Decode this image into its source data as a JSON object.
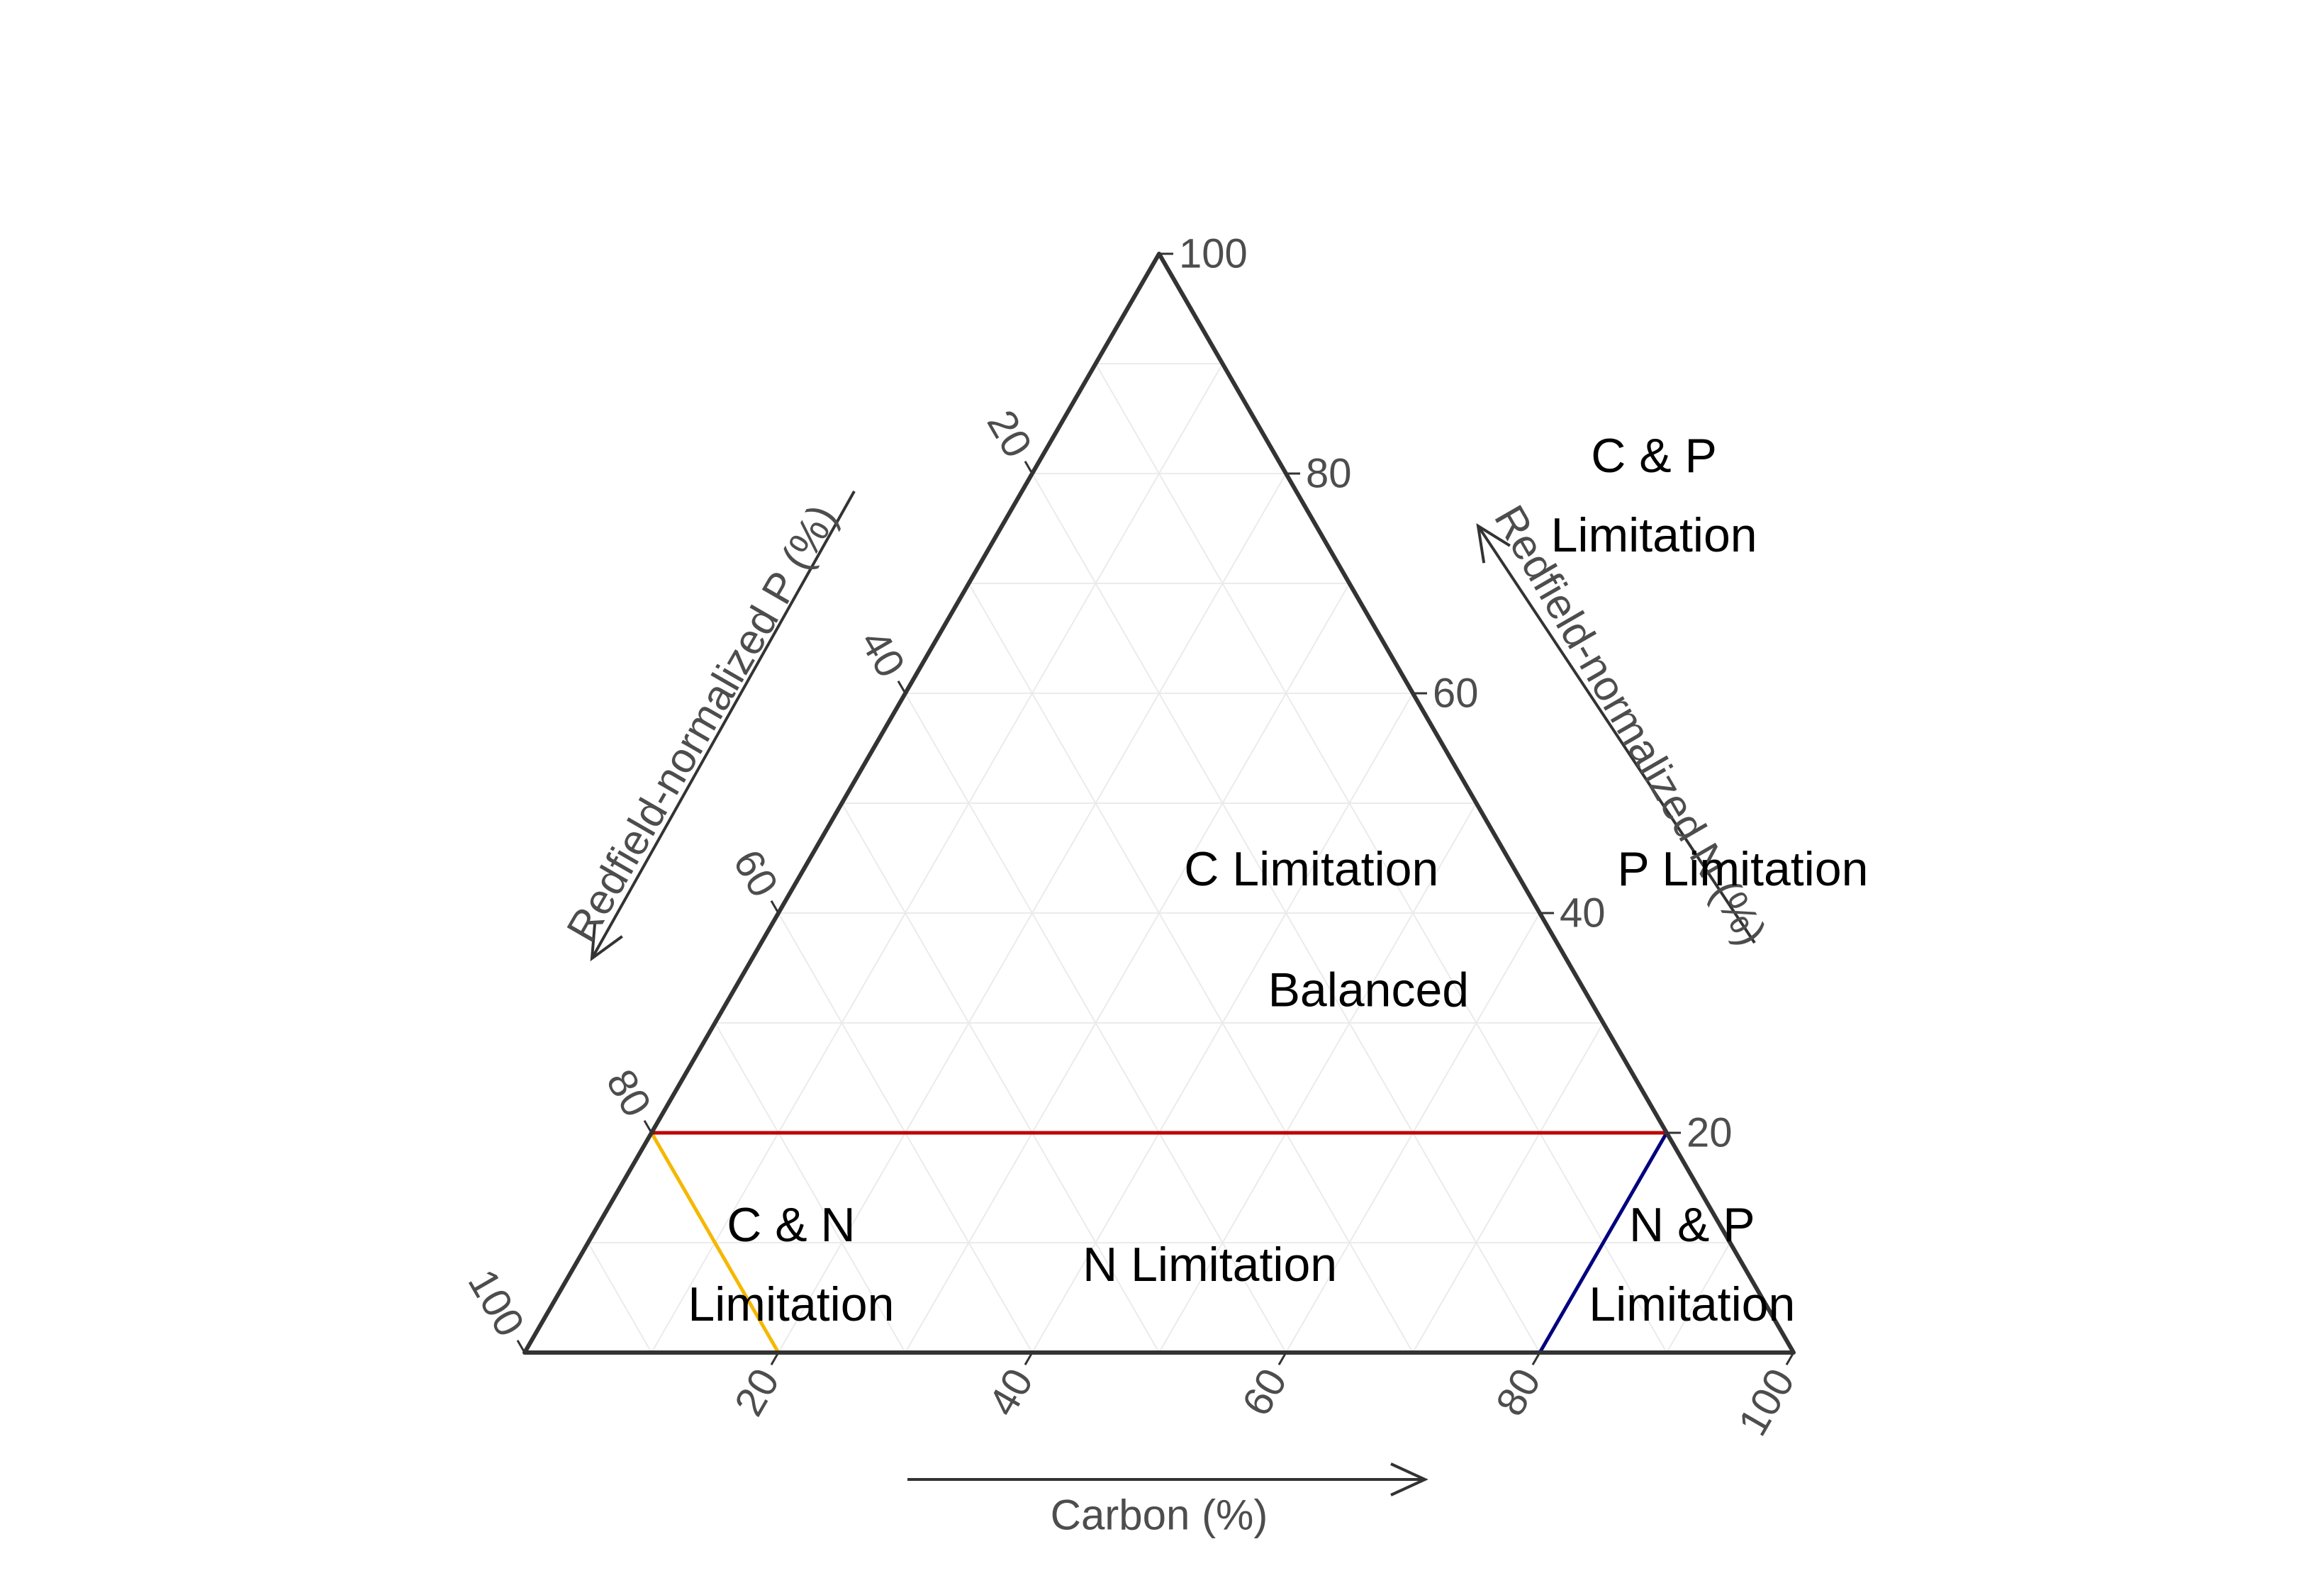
{
  "chart_data": {
    "type": "ternary",
    "axes": {
      "carbon": {
        "label": "Carbon (%)",
        "ticks": [
          "20",
          "40",
          "60",
          "80",
          "100"
        ]
      },
      "nitrogen": {
        "label": "Redfield-normalized N (%)",
        "ticks": [
          "20",
          "40",
          "60",
          "80",
          "100"
        ]
      },
      "phosphorus": {
        "label": "Redfield-normalized P (%)",
        "ticks": [
          "20",
          "40",
          "60",
          "80",
          "100"
        ]
      }
    },
    "grid": true,
    "threshold_lines": [
      {
        "name": "",
        "color": "#F5B700",
        "constant": "phosphorus",
        "value": 80
      },
      {
        "name": "",
        "color": "#00007F",
        "constant": "carbon",
        "value": 80
      },
      {
        "name": "",
        "color": "#BF0000",
        "constant": "nitrogen",
        "value": 20
      }
    ],
    "regions": [
      {
        "lines": [
          "C & P",
          "Limitation"
        ],
        "c": 50,
        "n": 78
      },
      {
        "lines": [
          "C Limitation"
        ],
        "c": 40,
        "n": 44
      },
      {
        "lines": [
          "P Limitation"
        ],
        "c": 74,
        "n": 44
      },
      {
        "lines": [
          "Balanced"
        ],
        "c": 50,
        "n": 33
      },
      {
        "lines": [
          "C & N",
          "Limitation"
        ],
        "c": 17,
        "n": 8
      },
      {
        "lines": [
          "N Limitation"
        ],
        "c": 50,
        "n": 8
      },
      {
        "lines": [
          "N & P",
          "Limitation"
        ],
        "c": 88,
        "n": 8
      }
    ]
  }
}
